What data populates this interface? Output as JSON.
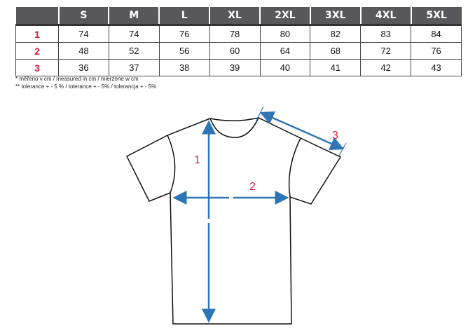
{
  "table": {
    "headers": [
      "",
      "S",
      "M",
      "L",
      "XL",
      "2XL",
      "3XL",
      "4XL",
      "5XL"
    ],
    "rows": [
      {
        "label": "1",
        "values": [
          "74",
          "74",
          "76",
          "78",
          "80",
          "82",
          "83",
          "84"
        ]
      },
      {
        "label": "2",
        "values": [
          "48",
          "52",
          "56",
          "60",
          "64",
          "68",
          "72",
          "76"
        ]
      },
      {
        "label": "3",
        "values": [
          "36",
          "37",
          "38",
          "39",
          "40",
          "41",
          "42",
          "43"
        ]
      }
    ]
  },
  "notes": [
    "* měřeno v cm / measured in cm / mierzone w cm",
    "** tolerance + - 5 % / tolerance + - 5% / tolerancja + - 5%"
  ],
  "diagram": {
    "labels": [
      "1",
      "2",
      "3"
    ],
    "arrow_color": "#2e75b6",
    "label_color": "#e01c3c"
  }
}
